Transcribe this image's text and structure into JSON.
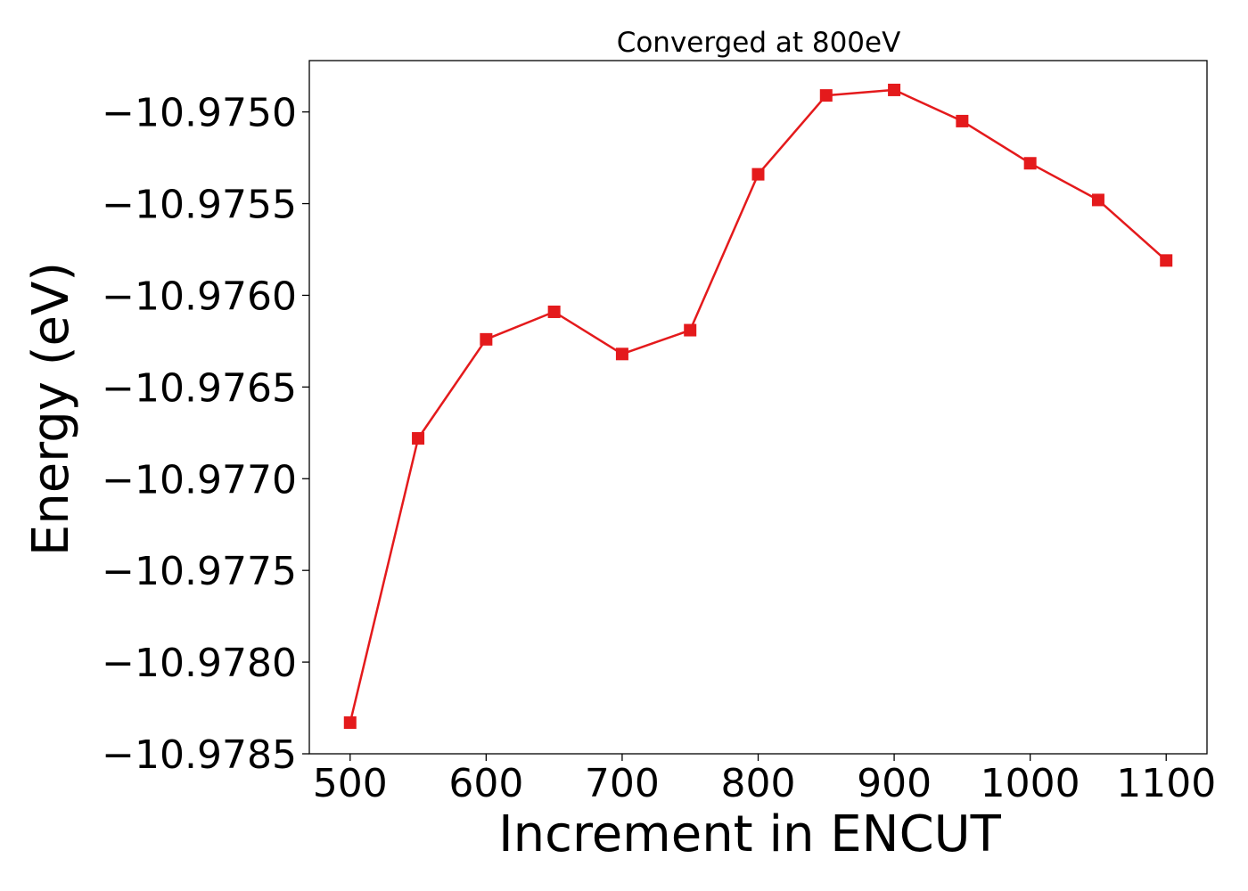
{
  "chart_data": {
    "type": "line",
    "title": "Converged at 800eV",
    "xlabel": "Increment in ENCUT",
    "ylabel": "Energy (eV)",
    "x": [
      500,
      550,
      600,
      650,
      700,
      750,
      800,
      850,
      900,
      950,
      1000,
      1050,
      1100
    ],
    "series": [
      {
        "values": [
          -10.97833,
          -10.97678,
          -10.97624,
          -10.97609,
          -10.97632,
          -10.97619,
          -10.97534,
          -10.97491,
          -10.97488,
          -10.97505,
          -10.97528,
          -10.97548,
          -10.97581
        ],
        "color": "#e41a1c",
        "marker": "square"
      }
    ],
    "xlim": [
      470,
      1130
    ],
    "ylim": [
      -10.9785,
      -10.97472
    ],
    "xticks": [
      500,
      600,
      700,
      800,
      900,
      1000,
      1100
    ],
    "xtick_labels": [
      "500",
      "600",
      "700",
      "800",
      "900",
      "1000",
      "1100"
    ],
    "yticks": [
      -10.9785,
      -10.978,
      -10.9775,
      -10.977,
      -10.9765,
      -10.976,
      -10.9755,
      -10.975
    ],
    "ytick_labels": [
      "−10.9785",
      "−10.9780",
      "−10.9775",
      "−10.9770",
      "−10.9765",
      "−10.9760",
      "−10.9755",
      "−10.9750"
    ],
    "grid": false,
    "legend": "none"
  }
}
